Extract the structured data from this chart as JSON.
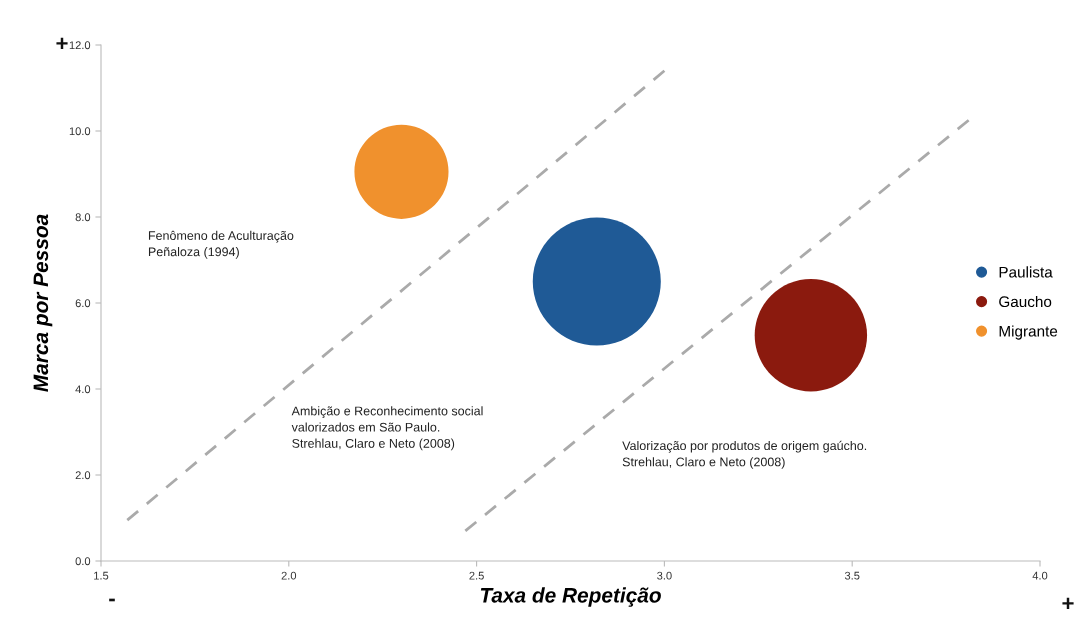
{
  "chart_data": {
    "type": "bubble",
    "xlabel": "Taxa de Repetição",
    "ylabel": "Marca por Pessoa",
    "xlim": [
      1.5,
      4.0
    ],
    "ylim": [
      0.0,
      12.0
    ],
    "xticks": [
      {
        "value": 1.5,
        "label": "1.5"
      },
      {
        "value": 2.0,
        "label": "2.0"
      },
      {
        "value": 2.5,
        "label": "2.5"
      },
      {
        "value": 3.0,
        "label": "3.0"
      },
      {
        "value": 3.5,
        "label": "3.5"
      },
      {
        "value": 4.0,
        "label": "4.0"
      }
    ],
    "yticks": [
      {
        "value": 0,
        "label": "0.0"
      },
      {
        "value": 2,
        "label": "2.0"
      },
      {
        "value": 4,
        "label": "4.0"
      },
      {
        "value": 6,
        "label": "6.0"
      },
      {
        "value": 8,
        "label": "8.0"
      },
      {
        "value": 10,
        "label": "10.0"
      },
      {
        "value": 12,
        "label": "12.0"
      }
    ],
    "series": [
      {
        "name": "Paulista",
        "marker": "circle",
        "color": "#1f5a96",
        "x": [
          2.82
        ],
        "values": [
          6.5
        ],
        "sizes": [
          1
        ]
      },
      {
        "name": "Gaucho",
        "marker": "circle",
        "color": "#8b1a0e",
        "x": [
          3.39
        ],
        "values": [
          5.25
        ],
        "sizes": [
          0.77
        ]
      },
      {
        "name": "Migrante",
        "marker": "circle",
        "color": "#f0912d",
        "x": [
          2.3
        ],
        "values": [
          9.05
        ],
        "sizes": [
          0.54
        ]
      },
      {
        "type": "line",
        "color": "#aaaaaa",
        "line_style": "dashed",
        "x": [
          1.57,
          3.0
        ],
        "values": [
          0.95,
          11.4
        ]
      },
      {
        "type": "line",
        "color": "#aaaaaa",
        "line_style": "dashed",
        "x": [
          2.47,
          3.81
        ],
        "values": [
          0.7,
          10.25
        ]
      }
    ],
    "annotations": [
      "Fenômeno de Aculturação\nPeñaloza (1994)",
      "Ambição e Reconhecimento social\nvalorizados em São Paulo.\nStrehlau, Claro e Neto (2008)",
      "Valorização por produtos de origem gaúcho.\nStrehlau, Claro e Neto (2008)",
      "+",
      "-",
      "+"
    ],
    "grid": false,
    "legend": "right"
  }
}
